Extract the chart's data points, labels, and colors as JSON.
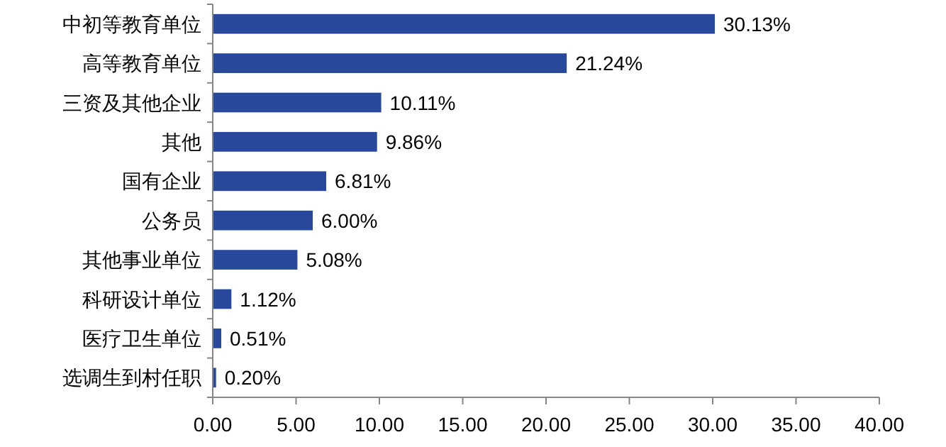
{
  "chart_data": {
    "type": "bar",
    "orientation": "horizontal",
    "categories": [
      "中初等教育单位",
      "高等教育单位",
      "三资及其他企业",
      "其他",
      "国有企业",
      "公务员",
      "其他事业单位",
      "科研设计单位",
      "医疗卫生单位",
      "选调生到村任职"
    ],
    "values": [
      30.13,
      21.24,
      10.11,
      9.86,
      6.81,
      6.0,
      5.08,
      1.12,
      0.51,
      0.2
    ],
    "value_labels": [
      "30.13%",
      "21.24%",
      "10.11%",
      "9.86%",
      "6.81%",
      "6.00%",
      "5.08%",
      "1.12%",
      "0.51%",
      "0.20%"
    ],
    "color": "#27489b",
    "xlim": [
      0,
      40
    ],
    "xticks": [
      {
        "value": 0,
        "label": "0.00"
      },
      {
        "value": 5,
        "label": "5.00"
      },
      {
        "value": 10,
        "label": "10.00"
      },
      {
        "value": 15,
        "label": "15.00"
      },
      {
        "value": 20,
        "label": "20.00"
      },
      {
        "value": 25,
        "label": "25.00"
      },
      {
        "value": 30,
        "label": "30.00"
      },
      {
        "value": 35,
        "label": "35.00"
      },
      {
        "value": 40,
        "label": "40.00"
      }
    ],
    "grid": false
  }
}
